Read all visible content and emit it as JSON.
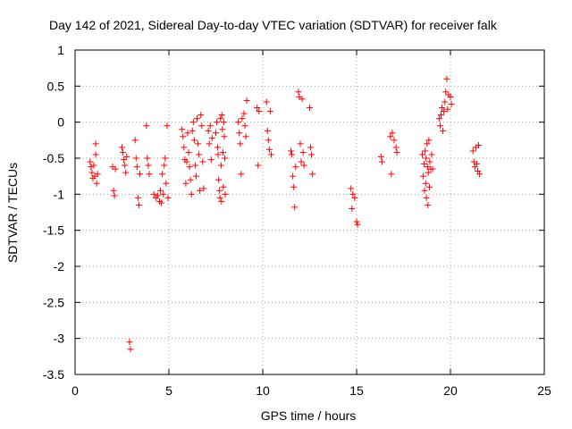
{
  "chart_data": {
    "type": "scatter",
    "title": "Day 142 of 2021, Sidereal Day-to-day VTEC variation (SDTVAR) for receiver falk",
    "xlabel": "GPS time / hours",
    "ylabel": "SDTVAR / TECUs",
    "xlim": [
      0,
      25
    ],
    "ylim": [
      -3.5,
      1
    ],
    "x_ticks": [
      "0",
      "5",
      "10",
      "15",
      "20",
      "25"
    ],
    "y_ticks": [
      "-3.5",
      "-3",
      "-2.5",
      "-2",
      "-1.5",
      "-1",
      "-0.5",
      "0",
      "0.5",
      "1"
    ],
    "grid": true,
    "marker": "+",
    "color": "#ff0000",
    "series": [
      {
        "name": "SDTVAR",
        "points": [
          [
            0.8,
            -0.55
          ],
          [
            0.85,
            -0.62
          ],
          [
            0.9,
            -0.7
          ],
          [
            0.95,
            -0.78
          ],
          [
            1.0,
            -0.6
          ],
          [
            1.05,
            -0.75
          ],
          [
            1.1,
            -0.3
          ],
          [
            1.1,
            -0.45
          ],
          [
            1.15,
            -0.85
          ],
          [
            1.2,
            -0.72
          ],
          [
            2.0,
            -0.62
          ],
          [
            2.05,
            -0.95
          ],
          [
            2.1,
            -1.02
          ],
          [
            2.15,
            -0.65
          ],
          [
            2.5,
            -0.35
          ],
          [
            2.55,
            -0.42
          ],
          [
            2.6,
            -0.52
          ],
          [
            2.65,
            -0.6
          ],
          [
            2.7,
            -0.7
          ],
          [
            2.75,
            -0.48
          ],
          [
            2.9,
            -3.05
          ],
          [
            2.95,
            -3.15
          ],
          [
            3.2,
            -0.25
          ],
          [
            3.25,
            -0.5
          ],
          [
            3.3,
            -0.62
          ],
          [
            3.35,
            -1.05
          ],
          [
            3.4,
            -1.15
          ],
          [
            3.45,
            -0.72
          ],
          [
            3.8,
            -0.05
          ],
          [
            3.85,
            -0.5
          ],
          [
            3.9,
            -0.6
          ],
          [
            3.95,
            -0.72
          ],
          [
            4.2,
            -1.0
          ],
          [
            4.3,
            -1.05
          ],
          [
            4.4,
            -1.02
          ],
          [
            4.5,
            -1.1
          ],
          [
            4.55,
            -0.95
          ],
          [
            4.6,
            -1.12
          ],
          [
            4.65,
            -0.72
          ],
          [
            4.7,
            -1.0
          ],
          [
            4.75,
            -0.6
          ],
          [
            4.8,
            -0.5
          ],
          [
            4.85,
            -0.85
          ],
          [
            4.9,
            -0.05
          ],
          [
            4.95,
            -1.05
          ],
          [
            5.7,
            -0.1
          ],
          [
            5.75,
            -0.2
          ],
          [
            5.8,
            -0.35
          ],
          [
            5.85,
            -0.52
          ],
          [
            5.9,
            -0.85
          ],
          [
            5.95,
            -0.55
          ],
          [
            6.0,
            -0.15
          ],
          [
            6.05,
            -0.42
          ],
          [
            6.1,
            -0.62
          ],
          [
            6.15,
            -0.8
          ],
          [
            6.2,
            -1.0
          ],
          [
            6.25,
            -0.12
          ],
          [
            6.3,
            0.0
          ],
          [
            6.35,
            -0.25
          ],
          [
            6.4,
            -0.6
          ],
          [
            6.45,
            -0.75
          ],
          [
            6.5,
            0.05
          ],
          [
            6.55,
            -0.3
          ],
          [
            6.6,
            -0.45
          ],
          [
            6.65,
            -0.95
          ],
          [
            6.7,
            0.1
          ],
          [
            6.75,
            -0.05
          ],
          [
            6.8,
            -0.55
          ],
          [
            6.85,
            -0.92
          ],
          [
            7.1,
            -0.12
          ],
          [
            7.15,
            -0.3
          ],
          [
            7.2,
            -0.05
          ],
          [
            7.25,
            -0.52
          ],
          [
            7.3,
            -0.22
          ],
          [
            7.5,
            -0.15
          ],
          [
            7.55,
            0.0
          ],
          [
            7.6,
            -0.35
          ],
          [
            7.62,
            -0.45
          ],
          [
            7.65,
            -0.8
          ],
          [
            7.7,
            -0.95
          ],
          [
            7.72,
            -1.05
          ],
          [
            7.75,
            0.05
          ],
          [
            7.78,
            -0.6
          ],
          [
            7.8,
            -1.1
          ],
          [
            7.82,
            0.1
          ],
          [
            7.85,
            -0.1
          ],
          [
            7.88,
            -0.42
          ],
          [
            7.9,
            -0.9
          ],
          [
            7.92,
            0.0
          ],
          [
            7.95,
            -0.2
          ],
          [
            7.98,
            -0.5
          ],
          [
            8.0,
            -1.0
          ],
          [
            8.7,
            0.0
          ],
          [
            8.75,
            -0.15
          ],
          [
            8.8,
            -0.3
          ],
          [
            8.85,
            -0.72
          ],
          [
            8.9,
            0.05
          ],
          [
            9.0,
            0.12
          ],
          [
            9.05,
            -0.05
          ],
          [
            9.1,
            -0.2
          ],
          [
            9.15,
            0.3
          ],
          [
            9.7,
            0.2
          ],
          [
            9.75,
            -0.6
          ],
          [
            9.8,
            0.15
          ],
          [
            10.2,
            0.28
          ],
          [
            10.25,
            -0.12
          ],
          [
            10.3,
            -0.25
          ],
          [
            10.35,
            -0.38
          ],
          [
            10.4,
            0.15
          ],
          [
            10.45,
            -0.45
          ],
          [
            11.5,
            -0.4
          ],
          [
            11.55,
            -0.45
          ],
          [
            11.6,
            -0.75
          ],
          [
            11.65,
            -0.9
          ],
          [
            11.7,
            -1.18
          ],
          [
            11.75,
            -0.62
          ],
          [
            11.9,
            0.42
          ],
          [
            11.95,
            0.35
          ],
          [
            12.0,
            -0.3
          ],
          [
            12.05,
            -0.55
          ],
          [
            12.1,
            0.32
          ],
          [
            12.15,
            -0.42
          ],
          [
            12.2,
            -0.6
          ],
          [
            12.5,
            0.2
          ],
          [
            12.55,
            -0.35
          ],
          [
            12.6,
            -0.45
          ],
          [
            12.65,
            -0.72
          ],
          [
            14.7,
            -0.92
          ],
          [
            14.75,
            -1.2
          ],
          [
            14.8,
            -1.0
          ],
          [
            14.9,
            -1.05
          ],
          [
            15.0,
            -1.38
          ],
          [
            15.05,
            -1.42
          ],
          [
            16.3,
            -0.48
          ],
          [
            16.35,
            -0.55
          ],
          [
            16.8,
            -0.2
          ],
          [
            16.85,
            -0.72
          ],
          [
            16.9,
            -0.15
          ],
          [
            17.0,
            -0.25
          ],
          [
            17.1,
            -0.35
          ],
          [
            17.15,
            -0.42
          ],
          [
            18.5,
            -0.45
          ],
          [
            18.55,
            -0.75
          ],
          [
            18.6,
            -0.58
          ],
          [
            18.62,
            -0.95
          ],
          [
            18.65,
            -0.4
          ],
          [
            18.68,
            -0.85
          ],
          [
            18.7,
            -0.5
          ],
          [
            18.72,
            -1.05
          ],
          [
            18.75,
            -0.3
          ],
          [
            18.78,
            -0.62
          ],
          [
            18.8,
            -1.15
          ],
          [
            18.82,
            -0.7
          ],
          [
            18.85,
            -0.25
          ],
          [
            18.88,
            -0.9
          ],
          [
            18.9,
            -0.55
          ],
          [
            18.95,
            -0.65
          ],
          [
            19.0,
            -0.45
          ],
          [
            19.05,
            -0.65
          ],
          [
            19.4,
            0.05
          ],
          [
            19.45,
            -0.05
          ],
          [
            19.5,
            0.1
          ],
          [
            19.55,
            0.2
          ],
          [
            19.6,
            -0.12
          ],
          [
            19.65,
            0.15
          ],
          [
            19.7,
            0.28
          ],
          [
            19.75,
            0.42
          ],
          [
            19.8,
            0.6
          ],
          [
            19.85,
            0.18
          ],
          [
            19.9,
            0.38
          ],
          [
            20.0,
            0.35
          ],
          [
            20.05,
            0.25
          ],
          [
            21.2,
            -0.4
          ],
          [
            21.25,
            -0.55
          ],
          [
            21.3,
            -0.62
          ],
          [
            21.35,
            -0.35
          ],
          [
            21.4,
            -0.58
          ],
          [
            21.45,
            -0.68
          ],
          [
            21.5,
            -0.32
          ],
          [
            21.55,
            -0.72
          ]
        ]
      }
    ]
  }
}
